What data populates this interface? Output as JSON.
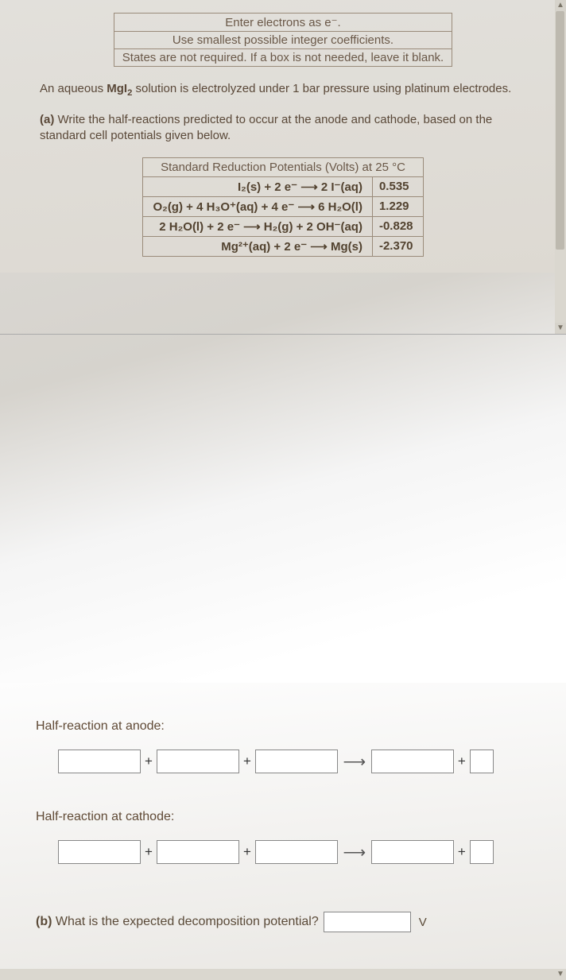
{
  "instructions": {
    "line1": "Enter electrons as e⁻.",
    "line2": "Use smallest possible integer coefficients.",
    "line3": "States are not required. If a box is not needed, leave it blank."
  },
  "intro": {
    "line1_pre": "An aqueous ",
    "line1_bold": "MgI",
    "line1_sub": "2",
    "line1_post": " solution is electrolyzed under 1 bar pressure using platinum electrodes.",
    "part_a_label": "(a)",
    "part_a_text": " Write the half-reactions predicted to occur at the anode and cathode, based on the standard cell potentials given below."
  },
  "table": {
    "header": "Standard Reduction Potentials (Volts) at 25 °C",
    "rows": [
      {
        "rxn": "I₂(s) + 2 e⁻ ⟶ 2 I⁻(aq)",
        "val": "0.535"
      },
      {
        "rxn": "O₂(g) + 4 H₃O⁺(aq) + 4 e⁻ ⟶ 6 H₂O(l)",
        "val": "1.229"
      },
      {
        "rxn": "2 H₂O(l) + 2 e⁻ ⟶ H₂(g) + 2 OH⁻(aq)",
        "val": "-0.828"
      },
      {
        "rxn": "Mg²⁺(aq) + 2 e⁻ ⟶ Mg(s)",
        "val": "-2.370"
      }
    ]
  },
  "labels": {
    "anode": "Half-reaction at anode:",
    "cathode": "Half-reaction at cathode:",
    "plus": "+",
    "arrow": "⟶",
    "part_b_bold": "(b)",
    "part_b_text": " What is the expected decomposition potential?",
    "volt_unit": "V"
  },
  "scroll": {
    "up": "▲",
    "down": "▼",
    "down2": "▼"
  }
}
